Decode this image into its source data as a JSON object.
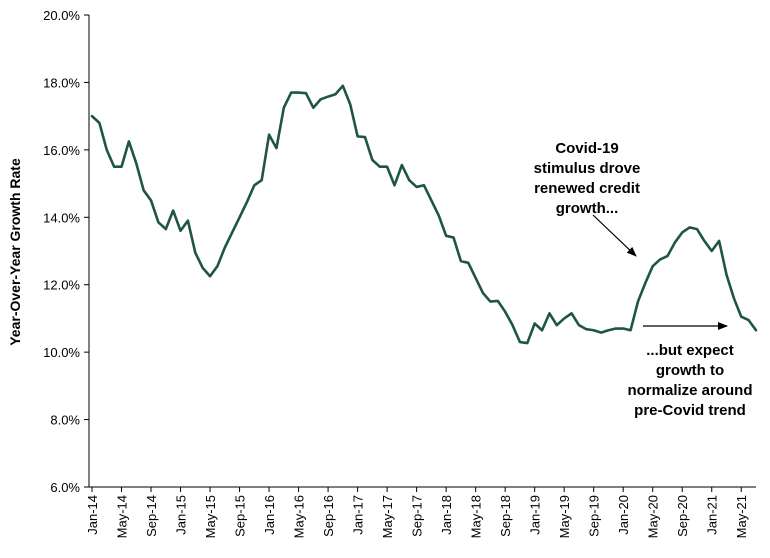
{
  "chart_data": {
    "type": "line",
    "title": "",
    "xlabel": "",
    "ylabel": "Year-Over-Year Growth Rate",
    "ylim": [
      6.0,
      20.0
    ],
    "yticks": [
      "6.0%",
      "8.0%",
      "10.0%",
      "12.0%",
      "14.0%",
      "16.0%",
      "18.0%",
      "20.0%"
    ],
    "xticks": [
      "Jan-14",
      "May-14",
      "Sep-14",
      "Jan-15",
      "May-15",
      "Sep-15",
      "Jan-16",
      "May-16",
      "Sep-16",
      "Jan-17",
      "May-17",
      "Sep-17",
      "Jan-18",
      "May-18",
      "Sep-18",
      "Jan-19",
      "May-19",
      "Sep-19",
      "Jan-20",
      "May-20",
      "Sep-20",
      "Jan-21",
      "May-21"
    ],
    "grid": false,
    "legend": "none",
    "line_color": "#1e5640",
    "x": [
      "Jan-14",
      "Feb-14",
      "Mar-14",
      "Apr-14",
      "May-14",
      "Jun-14",
      "Jul-14",
      "Aug-14",
      "Sep-14",
      "Oct-14",
      "Nov-14",
      "Dec-14",
      "Jan-15",
      "Feb-15",
      "Mar-15",
      "Apr-15",
      "May-15",
      "Jun-15",
      "Jul-15",
      "Aug-15",
      "Sep-15",
      "Oct-15",
      "Nov-15",
      "Dec-15",
      "Jan-16",
      "Feb-16",
      "Mar-16",
      "Apr-16",
      "May-16",
      "Jun-16",
      "Jul-16",
      "Aug-16",
      "Sep-16",
      "Oct-16",
      "Nov-16",
      "Dec-16",
      "Jan-17",
      "Feb-17",
      "Mar-17",
      "Apr-17",
      "May-17",
      "Jun-17",
      "Jul-17",
      "Aug-17",
      "Sep-17",
      "Oct-17",
      "Nov-17",
      "Dec-17",
      "Jan-18",
      "Feb-18",
      "Mar-18",
      "Apr-18",
      "May-18",
      "Jun-18",
      "Jul-18",
      "Aug-18",
      "Sep-18",
      "Oct-18",
      "Nov-18",
      "Dec-18",
      "Jan-19",
      "Feb-19",
      "Mar-19",
      "Apr-19",
      "May-19",
      "Jun-19",
      "Jul-19",
      "Aug-19",
      "Sep-19",
      "Oct-19",
      "Nov-19",
      "Dec-19",
      "Jan-20",
      "Feb-20",
      "Mar-20",
      "Apr-20",
      "May-20",
      "Jun-20",
      "Jul-20",
      "Aug-20",
      "Sep-20",
      "Oct-20",
      "Nov-20",
      "Dec-20",
      "Jan-21",
      "Feb-21",
      "Mar-21",
      "Apr-21",
      "May-21",
      "Jun-21",
      "Jul-21"
    ],
    "series": [
      {
        "values": [
          17.0,
          16.8,
          16.0,
          15.5,
          15.5,
          16.25,
          15.6,
          14.8,
          14.5,
          13.85,
          13.65,
          14.2,
          13.6,
          13.9,
          12.95,
          12.5,
          12.25,
          12.55,
          13.1,
          13.55,
          14.0,
          14.45,
          14.95,
          15.1,
          16.45,
          16.05,
          17.25,
          17.7,
          17.7,
          17.68,
          17.25,
          17.5,
          17.58,
          17.65,
          17.9,
          17.35,
          16.4,
          16.38,
          15.7,
          15.5,
          15.5,
          14.95,
          15.55,
          15.1,
          14.9,
          14.95,
          14.5,
          14.05,
          13.45,
          13.4,
          12.7,
          12.65,
          12.2,
          11.75,
          11.5,
          11.52,
          11.2,
          10.8,
          10.3,
          10.27,
          10.85,
          10.65,
          11.15,
          10.8,
          11.0,
          11.15,
          10.8,
          10.68,
          10.65,
          10.58,
          10.65,
          10.7,
          10.7,
          10.65,
          11.5,
          12.05,
          12.55,
          12.75,
          12.85,
          13.25,
          13.55,
          13.7,
          13.65,
          13.3,
          13.0,
          13.3,
          12.3,
          11.6,
          11.05,
          10.95,
          10.65
        ]
      }
    ],
    "annotations": [
      {
        "lines": [
          "Covid-19",
          "stimulus drove",
          "renewed credit",
          "growth..."
        ]
      },
      {
        "lines": [
          "...but expect",
          "growth to",
          "normalize around",
          "pre-Covid trend"
        ]
      }
    ]
  }
}
